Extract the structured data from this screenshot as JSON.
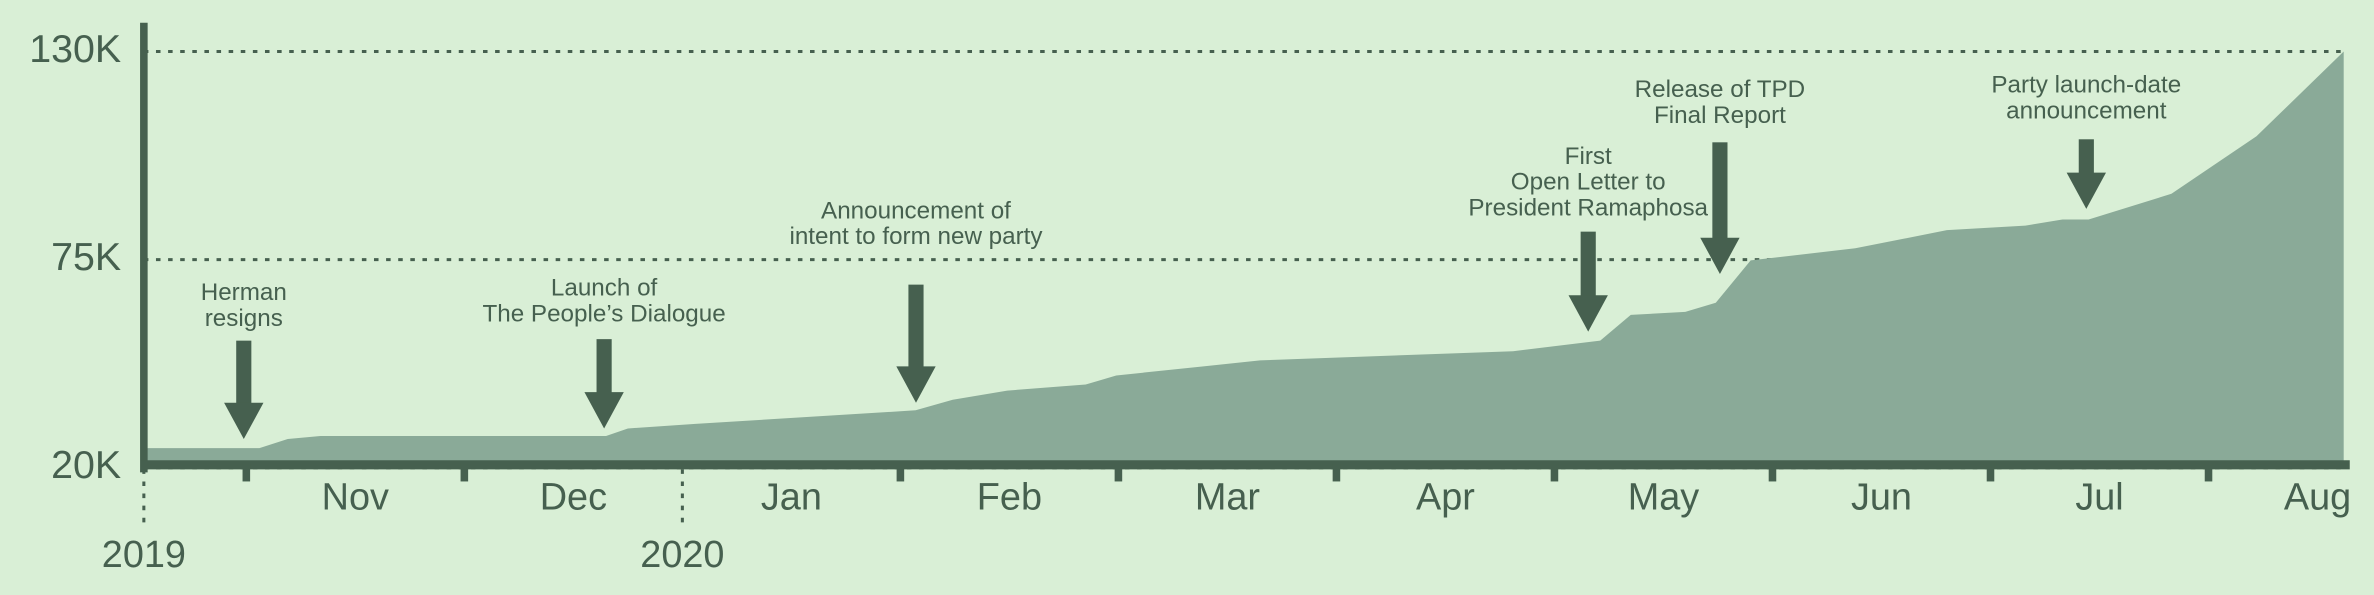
{
  "chart_data": {
    "type": "area",
    "x": [
      -0.47,
      0.06,
      0.19,
      0.34,
      1.65,
      1.75,
      2.06,
      3.07,
      3.24,
      3.49,
      3.85,
      3.99,
      4.39,
      4.65,
      5.81,
      6.21,
      6.35,
      6.6,
      6.74,
      6.9,
      7.38,
      7.8,
      8.16,
      8.33,
      8.45,
      8.83,
      9.22,
      9.62
    ],
    "values": [
      25200,
      25200,
      27600,
      28400,
      28400,
      30400,
      31600,
      35200,
      38000,
      40400,
      42000,
      44400,
      46800,
      48400,
      50800,
      53600,
      60400,
      61200,
      63600,
      74800,
      78000,
      82800,
      84000,
      85600,
      85600,
      92400,
      107600,
      130000
    ],
    "color": "#8aaa98",
    "xlim": [
      -0.47,
      9.62
    ],
    "ylim": [
      20000,
      130000
    ],
    "yticks": [
      {
        "value": 20000,
        "label": "20K"
      },
      {
        "value": 75000,
        "label": "75K"
      },
      {
        "value": 130000,
        "label": "130K"
      }
    ],
    "grid": true,
    "xticks": [
      0,
      1,
      2,
      3,
      4,
      5,
      6,
      7,
      8,
      9
    ],
    "month_labels": [
      {
        "value": 0.5,
        "label": "Nov"
      },
      {
        "value": 1.5,
        "label": "Dec"
      },
      {
        "value": 2.5,
        "label": "Jan"
      },
      {
        "value": 3.5,
        "label": "Feb"
      },
      {
        "value": 4.5,
        "label": "Mar"
      },
      {
        "value": 5.5,
        "label": "Apr"
      },
      {
        "value": 6.5,
        "label": "May"
      },
      {
        "value": 7.5,
        "label": "Jun"
      },
      {
        "value": 8.5,
        "label": "Jul"
      },
      {
        "value": 9.5,
        "label": "Aug"
      }
    ],
    "year_labels": [
      {
        "value": -0.47,
        "label": "2019"
      },
      {
        "value": 2,
        "label": "2020"
      }
    ],
    "annotations": [
      [
        "Herman",
        "resigns"
      ],
      [
        "Launch of",
        "The People’s Dialogue"
      ],
      [
        "Announcement of",
        "intent to form new party"
      ],
      [
        "First",
        "Open Letter to",
        "President Ramaphosa"
      ],
      [
        "Release of TPD",
        "Final Report"
      ],
      [
        "Party launch-date",
        "announcement"
      ]
    ]
  }
}
